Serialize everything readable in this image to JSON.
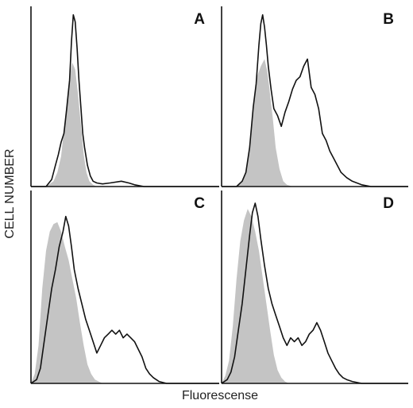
{
  "figure": {
    "xlabel": "Fluorescense",
    "ylabel": "CELL NUMBER"
  },
  "chart_data": [
    {
      "type": "area",
      "panel": "A",
      "grid": false,
      "xlim": [
        0,
        100
      ],
      "ylim": [
        0,
        100
      ],
      "series": [
        {
          "name": "",
          "style": "filled-gray",
          "x": [
            0,
            8,
            12,
            14,
            16,
            17.5,
            19,
            20.5,
            22,
            23.5,
            25,
            26.5,
            28,
            29.5,
            31,
            33,
            35,
            38,
            45
          ],
          "y": [
            0,
            0,
            3,
            8,
            17,
            32,
            48,
            62,
            70,
            66,
            52,
            35,
            18,
            8,
            3,
            1,
            0,
            0,
            0
          ]
        },
        {
          "name": "",
          "style": "line-black",
          "x": [
            0,
            8,
            11,
            13,
            14.5,
            16,
            17.5,
            19,
            20.5,
            21.5,
            22.5,
            23.5,
            24.5,
            25.5,
            26.5,
            27.5,
            28.5,
            30,
            31.5,
            33,
            35,
            38,
            42,
            48,
            52,
            55,
            60,
            70,
            100
          ],
          "y": [
            0,
            0,
            4,
            12,
            18,
            25,
            30,
            44,
            60,
            82,
            97,
            93,
            78,
            60,
            45,
            30,
            22,
            12,
            6,
            3,
            2,
            1.5,
            2,
            3,
            2,
            1,
            0,
            0,
            0
          ]
        }
      ]
    },
    {
      "type": "area",
      "panel": "B",
      "grid": false,
      "xlim": [
        0,
        100
      ],
      "ylim": [
        0,
        100
      ],
      "series": [
        {
          "name": "",
          "style": "filled-gray",
          "x": [
            0,
            8,
            11,
            13,
            15,
            17,
            19,
            21,
            23,
            24.5,
            26,
            27.5,
            29,
            31,
            33,
            35,
            38,
            45
          ],
          "y": [
            0,
            0,
            3,
            8,
            22,
            45,
            62,
            68,
            72,
            65,
            52,
            38,
            22,
            10,
            3,
            1,
            0,
            0
          ]
        },
        {
          "name": "",
          "style": "line-black",
          "x": [
            0,
            8,
            11,
            13,
            15,
            17,
            18.5,
            20,
            21,
            22,
            23,
            24,
            25,
            26.5,
            28,
            30,
            32,
            34,
            36,
            38,
            40,
            42,
            44,
            46,
            48,
            50,
            52,
            54,
            56,
            58,
            60,
            62,
            64,
            67,
            70,
            75,
            80,
            100
          ],
          "y": [
            0,
            0,
            3,
            8,
            22,
            45,
            58,
            80,
            92,
            97,
            90,
            80,
            68,
            55,
            44,
            40,
            34,
            42,
            48,
            55,
            60,
            62,
            68,
            72,
            56,
            52,
            44,
            30,
            26,
            20,
            16,
            12,
            8,
            5,
            3,
            1,
            0,
            0
          ]
        }
      ]
    },
    {
      "type": "area",
      "panel": "C",
      "grid": false,
      "xlim": [
        0,
        100
      ],
      "ylim": [
        0,
        100
      ],
      "series": [
        {
          "name": "",
          "style": "filled-gray",
          "x": [
            0,
            2,
            4,
            6,
            8,
            10,
            12,
            14,
            16,
            18,
            20,
            22,
            24,
            26,
            28,
            30,
            32,
            34,
            36,
            38,
            42
          ],
          "y": [
            0,
            5,
            20,
            50,
            70,
            80,
            84,
            85,
            80,
            72,
            65,
            55,
            45,
            32,
            20,
            10,
            5,
            2,
            1,
            0,
            0
          ]
        },
        {
          "name": "",
          "style": "line-black",
          "x": [
            0,
            3,
            5,
            7,
            9,
            11,
            13,
            15,
            17,
            18.5,
            20,
            21.5,
            23,
            25,
            27,
            29,
            31,
            33,
            35,
            37,
            39,
            41,
            43,
            45,
            47,
            49,
            51,
            53,
            55,
            57,
            59,
            61,
            63,
            65,
            68,
            72,
            100
          ],
          "y": [
            0,
            2,
            8,
            22,
            36,
            50,
            60,
            72,
            80,
            88,
            83,
            72,
            60,
            50,
            42,
            34,
            28,
            22,
            16,
            20,
            24,
            26,
            28,
            26,
            28,
            24,
            26,
            24,
            22,
            18,
            14,
            8,
            5,
            3,
            1,
            0,
            0
          ]
        }
      ]
    },
    {
      "type": "area",
      "panel": "D",
      "grid": false,
      "xlim": [
        0,
        100
      ],
      "ylim": [
        0,
        100
      ],
      "series": [
        {
          "name": "",
          "style": "filled-gray",
          "x": [
            0,
            2,
            4,
            6,
            8,
            10,
            12,
            14,
            16,
            18,
            20,
            22,
            24,
            26,
            28,
            30,
            32,
            34,
            36,
            40,
            45
          ],
          "y": [
            0,
            4,
            12,
            30,
            55,
            75,
            86,
            92,
            88,
            80,
            70,
            56,
            42,
            28,
            15,
            7,
            3,
            1,
            0,
            0,
            0
          ]
        },
        {
          "name": "",
          "style": "line-black",
          "x": [
            0,
            3,
            5,
            7,
            9,
            11,
            13,
            15,
            16.5,
            18,
            19.5,
            21,
            23,
            25,
            27,
            29,
            31,
            33,
            35,
            37,
            39,
            41,
            43,
            45,
            47,
            49,
            51,
            53,
            55,
            57,
            59,
            61,
            63,
            65,
            67,
            70,
            75,
            100
          ],
          "y": [
            0,
            2,
            6,
            14,
            28,
            42,
            60,
            78,
            90,
            95,
            88,
            76,
            62,
            50,
            42,
            36,
            30,
            24,
            20,
            24,
            22,
            24,
            20,
            22,
            26,
            28,
            32,
            28,
            22,
            16,
            12,
            8,
            5,
            3,
            2,
            1,
            0,
            0
          ]
        }
      ]
    }
  ]
}
